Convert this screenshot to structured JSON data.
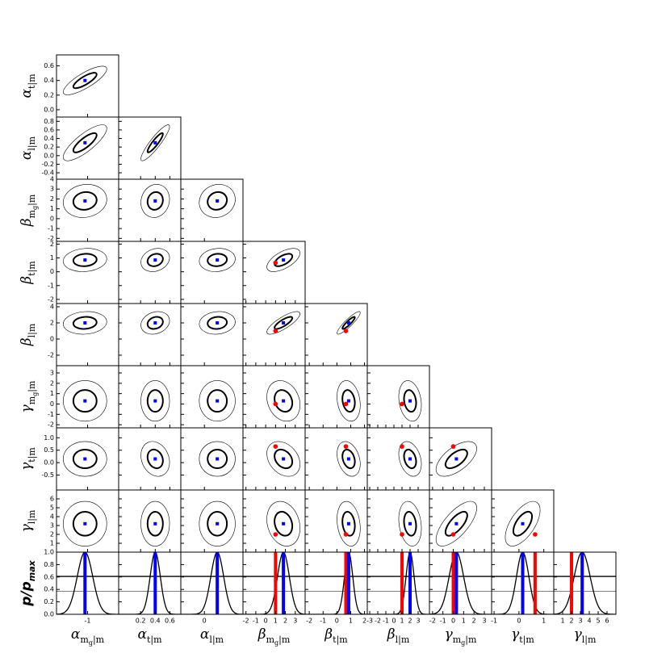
{
  "chart_data": {
    "type": "corner",
    "colors": {
      "best": "#0000ff",
      "true": "#ff0000"
    },
    "params": [
      {
        "symbol": "α",
        "sub": "m",
        "subsub": "g",
        "tail": "|m",
        "lim": [
          -1.6,
          -0.4
        ],
        "xticks": [
          -1
        ],
        "best": -1.05,
        "sigma": 0.15
      },
      {
        "symbol": "α",
        "sub": "t",
        "tail": "|m",
        "lim": [
          -0.1,
          0.75
        ],
        "yticks": [
          {
            "value": 0,
            "label": "0.0"
          },
          0.2,
          0.4,
          0.6
        ],
        "xticks": [
          0.2,
          0.4,
          0.6
        ],
        "best": 0.4,
        "sigma": 0.07
      },
      {
        "symbol": "α",
        "sub": "l",
        "tail": "|m",
        "lim": [
          -0.55,
          0.9
        ],
        "yticks": [
          -0.4,
          -0.2,
          {
            "value": 0,
            "label": "0.0"
          },
          0.2,
          0.4,
          0.6,
          0.8
        ],
        "xticks": [
          0
        ],
        "best": 0.3,
        "sigma": 0.15
      },
      {
        "symbol": "β",
        "sub": "m",
        "subsub": "g",
        "tail": "|m",
        "lim": [
          -2.3,
          4
        ],
        "yticks": [
          -2,
          -1,
          0,
          1,
          2,
          3,
          4
        ],
        "xticks": [
          -2,
          -1,
          0,
          1,
          2,
          3
        ],
        "best": 1.8,
        "sigma": 0.6,
        "truth": 1.0
      },
      {
        "symbol": "β",
        "sub": "t",
        "tail": "|m",
        "lim": [
          -2.3,
          2.2
        ],
        "yticks": [
          -2,
          -1,
          0,
          1,
          2
        ],
        "xticks": [
          -2,
          -1,
          0,
          1,
          2
        ],
        "best": 0.85,
        "sigma": 0.3,
        "truth": 0.65
      },
      {
        "symbol": "β",
        "sub": "l",
        "tail": "|m",
        "lim": [
          -3.3,
          4.4
        ],
        "yticks": [
          -2,
          0,
          2,
          4
        ],
        "xticks": [
          -3,
          -2,
          -1,
          0,
          1,
          2,
          3
        ],
        "best": 2.0,
        "sigma": 0.5,
        "truth": 1.0
      },
      {
        "symbol": "γ",
        "sub": "m",
        "subsub": "g",
        "tail": "|m",
        "lim": [
          -2.3,
          3.7
        ],
        "yticks": [
          -2,
          -1,
          0,
          1,
          2,
          3
        ],
        "xticks": [
          -2,
          -1,
          0,
          1,
          2,
          3
        ],
        "best": 0.3,
        "sigma": 0.7,
        "truth": 0.0
      },
      {
        "symbol": "γ",
        "sub": "t",
        "tail": "|m",
        "lim": [
          -1.1,
          1.4
        ],
        "yticks": [
          -0.5,
          {
            "value": 0,
            "label": "0.0"
          },
          0.5,
          {
            "value": 1,
            "label": "1.0"
          }
        ],
        "xticks": [
          -1,
          0,
          1
        ],
        "best": 0.15,
        "sigma": 0.25,
        "truth": 0.65
      },
      {
        "symbol": "γ",
        "sub": "l",
        "tail": "|m",
        "lim": [
          0,
          7
        ],
        "yticks": [
          1,
          2,
          3,
          4,
          5,
          6
        ],
        "xticks": [
          1,
          2,
          3,
          4,
          5,
          6
        ],
        "best": 3.2,
        "sigma": 0.9,
        "truth": 2.0
      }
    ],
    "correlations": [
      [
        0.8
      ],
      [
        0.8,
        0.9
      ],
      [
        0.1,
        0.1,
        0.1
      ],
      [
        0.1,
        0.2,
        0.1,
        0.6
      ],
      [
        0.1,
        0.2,
        0.1,
        0.8,
        0.9
      ],
      [
        0,
        0,
        0,
        -0.2,
        -0.2,
        -0.2
      ],
      [
        0,
        -0.2,
        0,
        -0.3,
        -0.3,
        -0.3,
        0.6
      ],
      [
        0,
        0,
        0,
        -0.2,
        -0.2,
        -0.2,
        0.7,
        0.6
      ]
    ],
    "density": {
      "main": "p/p",
      "sub": "max",
      "ylim": [
        0,
        1
      ],
      "yticks": [
        {
          "value": 0,
          "label": "0.0"
        },
        0.2,
        0.4,
        0.6,
        0.8,
        {
          "value": 1,
          "label": "1.0"
        }
      ],
      "levels": [
        0.61,
        0.37
      ]
    }
  }
}
